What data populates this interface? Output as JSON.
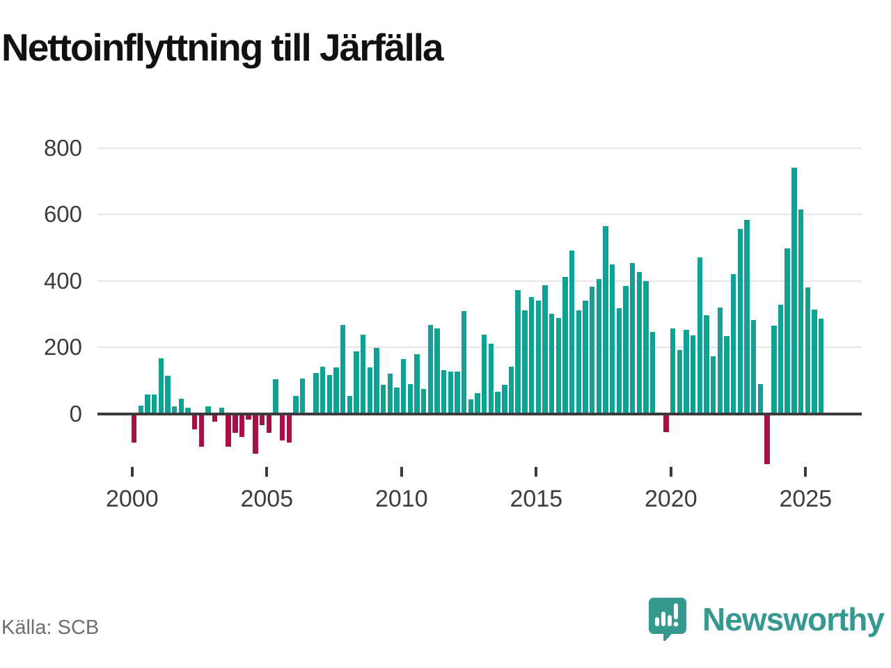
{
  "title": "Nettoinflyttning till Järfälla",
  "source": "Källa: SCB",
  "brand": {
    "name": "Newsworthy",
    "color": "#35998F",
    "icon": "newsworthy-speech-bubble-chart-icon"
  },
  "chart_data": {
    "type": "bar",
    "title": "Nettoinflyttning till Järfälla",
    "x_unit": "quarter",
    "categories": [
      "2000Q1",
      "2000Q2",
      "2000Q3",
      "2000Q4",
      "2001Q1",
      "2001Q2",
      "2001Q3",
      "2001Q4",
      "2002Q1",
      "2002Q2",
      "2002Q3",
      "2002Q4",
      "2003Q1",
      "2003Q2",
      "2003Q3",
      "2003Q4",
      "2004Q1",
      "2004Q2",
      "2004Q3",
      "2004Q4",
      "2005Q1",
      "2005Q2",
      "2005Q3",
      "2005Q4",
      "2006Q1",
      "2006Q2",
      "2006Q3",
      "2006Q4",
      "2007Q1",
      "2007Q2",
      "2007Q3",
      "2007Q4",
      "2008Q1",
      "2008Q2",
      "2008Q3",
      "2008Q4",
      "2009Q1",
      "2009Q2",
      "2009Q3",
      "2009Q4",
      "2010Q1",
      "2010Q2",
      "2010Q3",
      "2010Q4",
      "2011Q1",
      "2011Q2",
      "2011Q3",
      "2011Q4",
      "2012Q1",
      "2012Q2",
      "2012Q3",
      "2012Q4",
      "2013Q1",
      "2013Q2",
      "2013Q3",
      "2013Q4",
      "2014Q1",
      "2014Q2",
      "2014Q3",
      "2014Q4",
      "2015Q1",
      "2015Q2",
      "2015Q3",
      "2015Q4",
      "2016Q1",
      "2016Q2",
      "2016Q3",
      "2016Q4",
      "2017Q1",
      "2017Q2",
      "2017Q3",
      "2017Q4",
      "2018Q1",
      "2018Q2",
      "2018Q3",
      "2018Q4",
      "2019Q1",
      "2019Q2",
      "2019Q3",
      "2019Q4",
      "2020Q1",
      "2020Q2",
      "2020Q3",
      "2020Q4",
      "2021Q1",
      "2021Q2",
      "2021Q3",
      "2021Q4",
      "2022Q1",
      "2022Q2",
      "2022Q3",
      "2022Q4",
      "2023Q1",
      "2023Q2",
      "2023Q3",
      "2023Q4",
      "2024Q1",
      "2024Q2",
      "2024Q3",
      "2024Q4",
      "2025Q1",
      "2025Q2",
      "2025Q3"
    ],
    "values": [
      -85,
      25,
      58,
      58,
      168,
      115,
      23,
      46,
      18,
      -45,
      -98,
      22,
      -24,
      18,
      -99,
      -57,
      -70,
      -17,
      -120,
      -33,
      -57,
      105,
      -79,
      -86,
      55,
      106,
      0,
      124,
      143,
      117,
      140,
      268,
      55,
      189,
      238,
      140,
      198,
      87,
      122,
      80,
      166,
      90,
      180,
      76,
      268,
      257,
      131,
      128,
      128,
      310,
      44,
      62,
      239,
      212,
      67,
      88,
      142,
      373,
      312,
      352,
      342,
      387,
      302,
      288,
      413,
      491,
      312,
      340,
      382,
      405,
      565,
      449,
      318,
      384,
      455,
      427,
      400,
      247,
      0,
      -55,
      257,
      193,
      253,
      237,
      470,
      298,
      174,
      321,
      235,
      421,
      556,
      584,
      283,
      90,
      -150,
      265,
      329,
      498,
      741,
      615,
      380,
      313,
      287
    ],
    "xticks": [
      "2000",
      "2005",
      "2010",
      "2015",
      "2020",
      "2025"
    ],
    "yticks": [
      0,
      200,
      400,
      600,
      800
    ],
    "ylim": [
      -180,
      840
    ],
    "grid": true,
    "legend": false,
    "bar_color_positive": "#0FA294",
    "bar_color_negative": "#A51146",
    "gridline_color": "#E4E4E2",
    "axis_color": "#3A3A3A",
    "tick_label_color": "#3D3D3D"
  }
}
